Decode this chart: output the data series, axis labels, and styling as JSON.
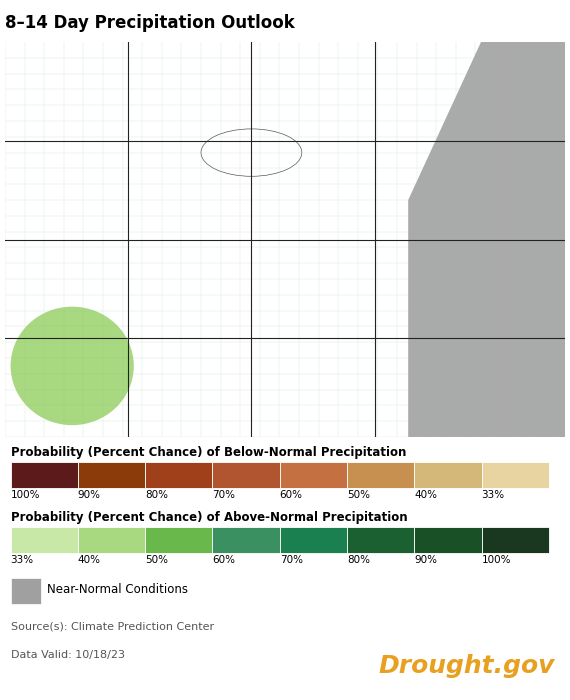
{
  "title": "8–14 Day Precipitation Outlook",
  "title_fontsize": 12,
  "title_fontweight": "bold",
  "source_text": "Source(s): Climate Prediction Center",
  "date_text": "Data Valid: 10/18/23",
  "drought_gov_text": "Drought.gov",
  "drought_gov_color": "#E8A020",
  "drought_gov_fontsize": 18,
  "source_fontsize": 8,
  "below_normal_label": "Probability (Percent Chance) of Below-Normal Precipitation",
  "above_normal_label": "Probability (Percent Chance) of Above-Normal Precipitation",
  "legend_label_fontsize": 8.5,
  "below_colors": [
    "#5C1A1A",
    "#8B3A0A",
    "#A0401A",
    "#B05530",
    "#C47040",
    "#C89050",
    "#D4B87A",
    "#E8D4A0"
  ],
  "below_labels": [
    "100%",
    "90%",
    "80%",
    "70%",
    "60%",
    "50%",
    "40%",
    "33%"
  ],
  "above_colors": [
    "#C8E8A8",
    "#A8D880",
    "#68B84C",
    "#3A9060",
    "#1A8050",
    "#1A6030",
    "#1A5025",
    "#1A3820"
  ],
  "above_labels": [
    "33%",
    "40%",
    "50%",
    "60%",
    "70%",
    "80%",
    "90%",
    "100%"
  ],
  "near_normal_color": "#A0A0A0",
  "near_normal_label": "Near-Normal Conditions",
  "background_color": "#FFFFFF",
  "light_green": "#C8E8A8",
  "medium_green": "#A8D880",
  "gray_map": "#AAAAAA",
  "water_color": "#FFFFFF",
  "county_color": "#90C890",
  "state_color": "#222222"
}
